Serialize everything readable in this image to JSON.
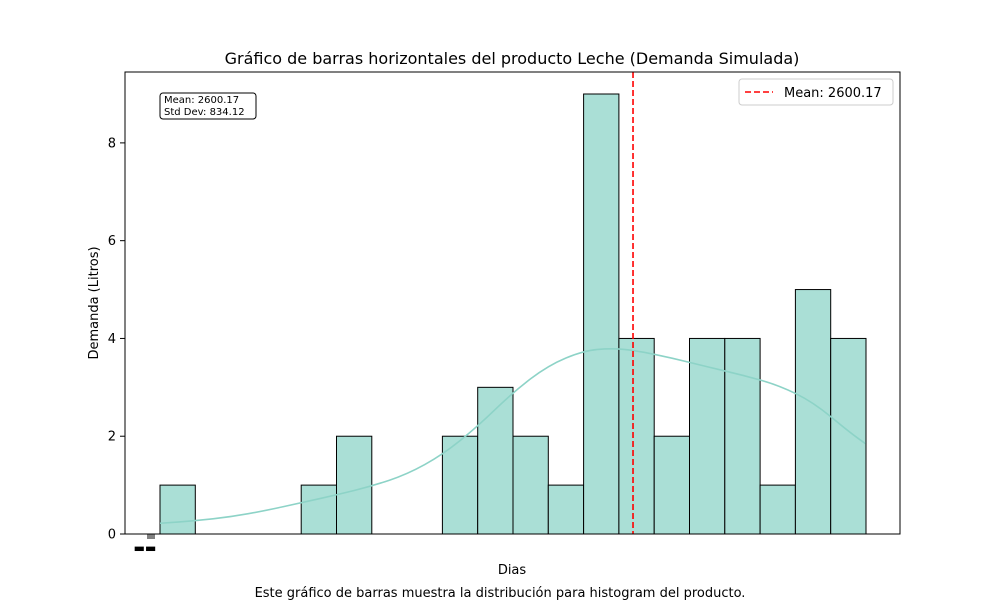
{
  "chart_data": {
    "type": "bar",
    "title": "Gráfico de barras horizontales del producto Leche (Demanda Simulada)",
    "xlabel": "Dias",
    "ylabel": "Demanda (Litros)",
    "caption": "Este gráfico de barras muestra la distribución para histogram del producto.",
    "ylim": [
      0,
      9.45
    ],
    "yticks": [
      0,
      2,
      4,
      6,
      8
    ],
    "ytick_labels": [
      "0",
      "2",
      "4",
      "6",
      "8"
    ],
    "bar_color": "#aadfd6",
    "kde_color": "#8dd3c7",
    "mean_line_color": "#ff0000",
    "bins": [
      {
        "index": 0,
        "count": 1
      },
      {
        "index": 4,
        "count": 1
      },
      {
        "index": 5,
        "count": 2
      },
      {
        "index": 8,
        "count": 2
      },
      {
        "index": 9,
        "count": 3
      },
      {
        "index": 10,
        "count": 2
      },
      {
        "index": 11,
        "count": 1
      },
      {
        "index": 12,
        "count": 9
      },
      {
        "index": 13,
        "count": 4
      },
      {
        "index": 14,
        "count": 2
      },
      {
        "index": 15,
        "count": 4
      },
      {
        "index": 16,
        "count": 4
      },
      {
        "index": 17,
        "count": 1
      },
      {
        "index": 18,
        "count": 5
      },
      {
        "index": 19,
        "count": 4
      }
    ],
    "bin_count": 20,
    "mean_bin_position": 13.4,
    "kde": [
      [
        0,
        0.22
      ],
      [
        1,
        0.27
      ],
      [
        2,
        0.35
      ],
      [
        3,
        0.48
      ],
      [
        4,
        0.64
      ],
      [
        5,
        0.8
      ],
      [
        6,
        0.98
      ],
      [
        7,
        1.22
      ],
      [
        8,
        1.62
      ],
      [
        9,
        2.2
      ],
      [
        10,
        2.9
      ],
      [
        11,
        3.45
      ],
      [
        12,
        3.75
      ],
      [
        12.8,
        3.8
      ],
      [
        13.5,
        3.75
      ],
      [
        14.5,
        3.6
      ],
      [
        15.5,
        3.42
      ],
      [
        16.5,
        3.25
      ],
      [
        17.5,
        3.05
      ],
      [
        18.5,
        2.7
      ],
      [
        19.5,
        2.1
      ],
      [
        19.98,
        1.85
      ]
    ],
    "legend": {
      "label": "Mean: 2600.17",
      "position": "top-right"
    },
    "stats_box": {
      "line1": "Mean: 2600.17",
      "line2": "Std Dev: 834.12",
      "position": "top-left"
    }
  }
}
